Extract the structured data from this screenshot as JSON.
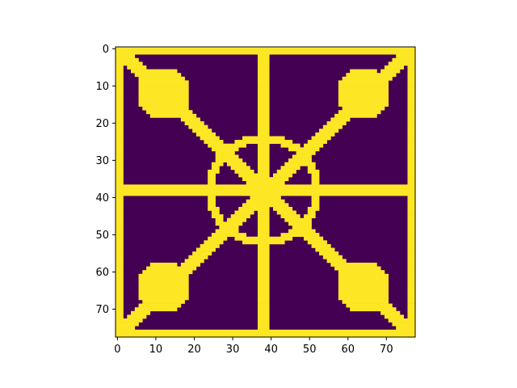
{
  "chart_data": {
    "type": "heatmap",
    "title": "",
    "xlabel": "",
    "ylabel": "",
    "grid": false,
    "legend": "none",
    "colormap": "viridis",
    "colors": {
      "low": "#440154",
      "high": "#fde725",
      "axis": "#000000"
    },
    "shape": [
      78,
      78
    ],
    "xlim": [
      -0.5,
      77.5
    ],
    "ylim": [
      77.5,
      -0.5
    ],
    "xticks": [
      0,
      10,
      20,
      30,
      40,
      50,
      60,
      70
    ],
    "yticks": [
      0,
      10,
      20,
      30,
      40,
      50,
      60,
      70
    ],
    "xtick_labels": [
      "0",
      "10",
      "20",
      "30",
      "40",
      "50",
      "60",
      "70"
    ],
    "ytick_labels": [
      "0",
      "10",
      "20",
      "30",
      "40",
      "50",
      "60",
      "70"
    ],
    "pattern": {
      "values": [
        0,
        1
      ],
      "background_value": 0,
      "shape_value": 1,
      "border_width": 2,
      "center": [
        38.5,
        38.5
      ],
      "horizontal_line": {
        "y": 38.5,
        "half_width": 1.6
      },
      "vertical_line": {
        "x": 38.5,
        "half_width": 1.4
      },
      "diagonal_half_width": 1.9,
      "ring": {
        "radius": 14,
        "half_width": 1.1
      },
      "corner_blobs": [
        {
          "cx": 12.5,
          "cy": 12.5,
          "radius": 6.8
        },
        {
          "cx": 64.5,
          "cy": 12.5,
          "radius": 6.8
        },
        {
          "cx": 12.5,
          "cy": 64.5,
          "radius": 6.8
        },
        {
          "cx": 64.5,
          "cy": 64.5,
          "radius": 6.8
        }
      ]
    }
  }
}
